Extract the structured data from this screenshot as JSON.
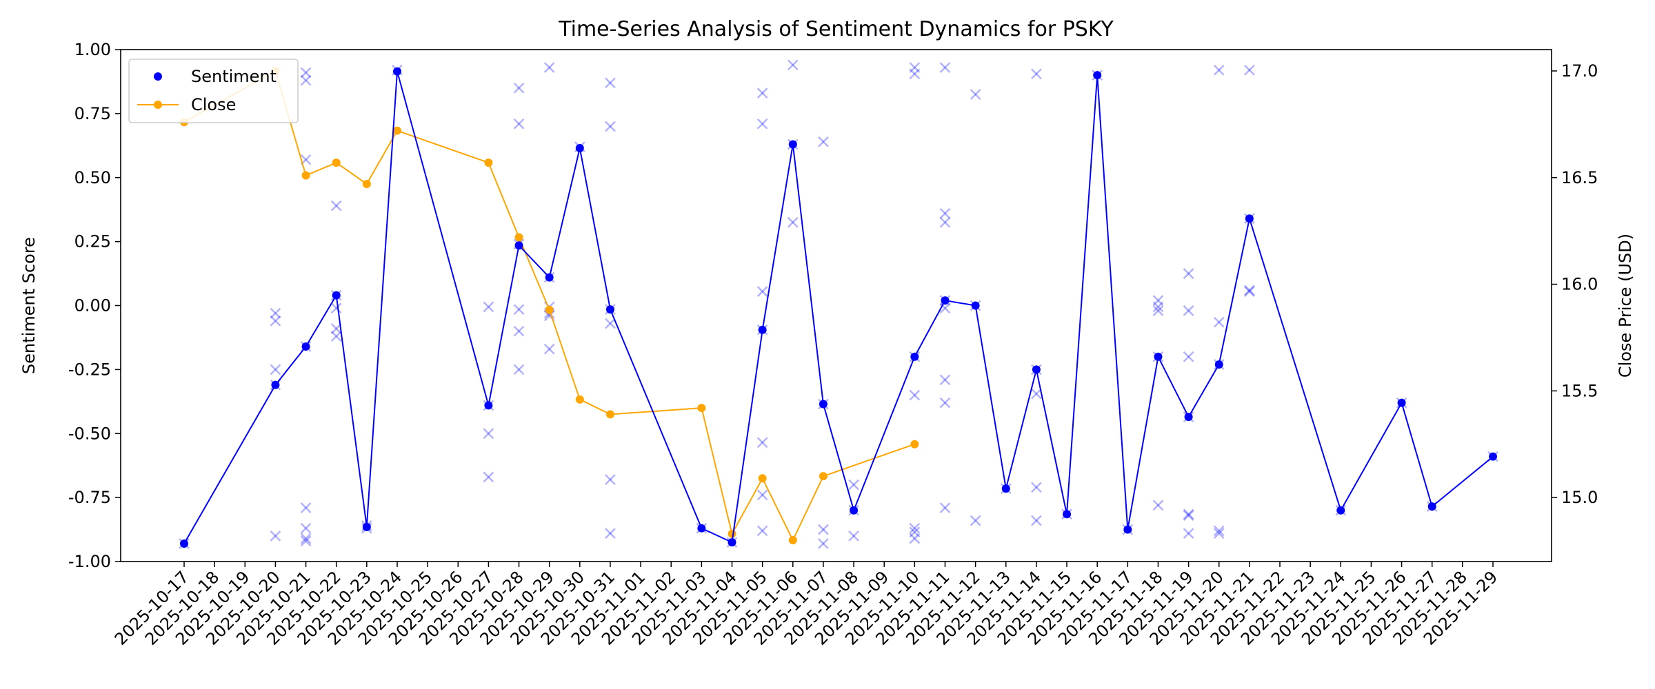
{
  "chart_data": {
    "type": "line",
    "title": "Time-Series Analysis of Sentiment Dynamics for PSKY",
    "ylabel": "Sentiment Score",
    "ylabel_right": "Close Price (USD)",
    "xlabel": "",
    "ylim": [
      -1.0,
      1.0
    ],
    "ylim_right": [
      14.7,
      17.1
    ],
    "yticks": [
      "-1.00",
      "-0.75",
      "-0.50",
      "-0.25",
      "0.00",
      "0.25",
      "0.50",
      "0.75",
      "1.00"
    ],
    "yticks_right": [
      "15.0",
      "15.5",
      "16.0",
      "16.5",
      "17.0"
    ],
    "x_categories": [
      "2025-10-17",
      "2025-10-18",
      "2025-10-19",
      "2025-10-20",
      "2025-10-21",
      "2025-10-22",
      "2025-10-23",
      "2025-10-24",
      "2025-10-25",
      "2025-10-26",
      "2025-10-27",
      "2025-10-28",
      "2025-10-29",
      "2025-10-30",
      "2025-10-31",
      "2025-11-01",
      "2025-11-02",
      "2025-11-03",
      "2025-11-04",
      "2025-11-05",
      "2025-11-06",
      "2025-11-07",
      "2025-11-08",
      "2025-11-09",
      "2025-11-10",
      "2025-11-11",
      "2025-11-12",
      "2025-11-13",
      "2025-11-14",
      "2025-11-15",
      "2025-11-16",
      "2025-11-17",
      "2025-11-18",
      "2025-11-19",
      "2025-11-20",
      "2025-11-21",
      "2025-11-22",
      "2025-11-23",
      "2025-11-24",
      "2025-11-25",
      "2025-11-26",
      "2025-11-27",
      "2025-11-28",
      "2025-11-29"
    ],
    "x_positions": [
      "2025-10-17",
      "2025-10-19",
      "2025-10-20",
      "2025-10-21",
      "2025-10-22",
      "2025-10-24",
      "2025-10-26",
      "2025-10-27",
      "2025-10-28",
      "2025-10-29",
      "2025-10-30",
      "2025-11-02",
      "2025-11-03",
      "2025-11-04",
      "2025-11-05",
      "2025-11-06",
      "2025-11-07",
      "2025-11-09",
      "2025-11-10",
      "2025-11-11",
      "2025-11-12",
      "2025-11-13",
      "2025-11-14",
      "2025-11-15",
      "2025-11-16",
      "2025-11-17",
      "2025-11-18",
      "2025-11-19",
      "2025-11-20",
      "2025-11-23",
      "2025-11-25",
      "2025-11-26",
      "2025-11-28"
    ],
    "series": [
      {
        "name": "Sentiment",
        "color": "#0000ff",
        "axis": "left",
        "points": [
          [
            "2025-10-17",
            -0.93
          ],
          [
            "2025-10-20",
            -0.31
          ],
          [
            "2025-10-21",
            -0.16
          ],
          [
            "2025-10-22",
            0.04
          ],
          [
            "2025-10-23",
            -0.865
          ],
          [
            "2025-10-24",
            0.915
          ],
          [
            "2025-10-27",
            -0.39
          ],
          [
            "2025-10-28",
            0.235
          ],
          [
            "2025-10-29",
            0.11
          ],
          [
            "2025-10-30",
            0.615
          ],
          [
            "2025-10-31",
            -0.015
          ],
          [
            "2025-11-03",
            -0.87
          ],
          [
            "2025-11-04",
            -0.925
          ],
          [
            "2025-11-05",
            -0.095
          ],
          [
            "2025-11-06",
            0.63
          ],
          [
            "2025-11-07",
            -0.385
          ],
          [
            "2025-11-08",
            -0.8
          ],
          [
            "2025-11-10",
            -0.2
          ],
          [
            "2025-11-11",
            0.02
          ],
          [
            "2025-11-12",
            0.0
          ],
          [
            "2025-11-13",
            -0.715
          ],
          [
            "2025-11-14",
            -0.25
          ],
          [
            "2025-11-15",
            -0.815
          ],
          [
            "2025-11-16",
            0.9
          ],
          [
            "2025-11-17",
            -0.875
          ],
          [
            "2025-11-18",
            -0.2
          ],
          [
            "2025-11-19",
            -0.435
          ],
          [
            "2025-11-20",
            -0.23
          ],
          [
            "2025-11-21",
            0.34
          ],
          [
            "2025-11-24",
            -0.8
          ],
          [
            "2025-11-26",
            -0.38
          ],
          [
            "2025-11-27",
            -0.785
          ],
          [
            "2025-11-29",
            -0.59
          ]
        ]
      },
      {
        "name": "Close",
        "color": "#ffa500",
        "axis": "right",
        "points": [
          [
            "2025-10-17",
            16.76
          ],
          [
            "2025-10-20",
            17.0
          ],
          [
            "2025-10-21",
            16.51
          ],
          [
            "2025-10-22",
            16.57
          ],
          [
            "2025-10-23",
            16.47
          ],
          [
            "2025-10-24",
            16.72
          ],
          [
            "2025-10-27",
            16.57
          ],
          [
            "2025-10-28",
            16.22
          ],
          [
            "2025-10-29",
            15.88
          ],
          [
            "2025-10-30",
            15.46
          ],
          [
            "2025-10-31",
            15.39
          ],
          [
            "2025-11-03",
            15.42
          ],
          [
            "2025-11-04",
            14.83
          ],
          [
            "2025-11-05",
            15.09
          ],
          [
            "2025-11-06",
            14.8
          ],
          [
            "2025-11-07",
            15.1
          ],
          [
            "2025-11-10",
            15.25
          ]
        ]
      }
    ],
    "scatter_individual": {
      "color": "#0000ff",
      "opacity": 0.3,
      "marker": "x",
      "points": [
        [
          "2025-10-17",
          -0.93
        ],
        [
          "2025-10-20",
          -0.03
        ],
        [
          "2025-10-20",
          -0.06
        ],
        [
          "2025-10-20",
          -0.25
        ],
        [
          "2025-10-20",
          -0.31
        ],
        [
          "2025-10-20",
          -0.9
        ],
        [
          "2025-10-21",
          0.91
        ],
        [
          "2025-10-21",
          0.88
        ],
        [
          "2025-10-21",
          0.57
        ],
        [
          "2025-10-21",
          -0.16
        ],
        [
          "2025-10-21",
          -0.79
        ],
        [
          "2025-10-21",
          -0.87
        ],
        [
          "2025-10-21",
          -0.91
        ],
        [
          "2025-10-21",
          -0.92
        ],
        [
          "2025-10-22",
          0.39
        ],
        [
          "2025-10-22",
          0.04
        ],
        [
          "2025-10-22",
          -0.01
        ],
        [
          "2025-10-22",
          -0.09
        ],
        [
          "2025-10-22",
          -0.12
        ],
        [
          "2025-10-23",
          -0.86
        ],
        [
          "2025-10-23",
          -0.87
        ],
        [
          "2025-10-24",
          0.92
        ],
        [
          "2025-10-27",
          -0.005
        ],
        [
          "2025-10-27",
          -0.39
        ],
        [
          "2025-10-27",
          -0.5
        ],
        [
          "2025-10-27",
          -0.67
        ],
        [
          "2025-10-28",
          0.85
        ],
        [
          "2025-10-28",
          0.71
        ],
        [
          "2025-10-28",
          0.24
        ],
        [
          "2025-10-28",
          -0.015
        ],
        [
          "2025-10-28",
          -0.1
        ],
        [
          "2025-10-28",
          -0.25
        ],
        [
          "2025-10-29",
          0.93
        ],
        [
          "2025-10-29",
          0.11
        ],
        [
          "2025-10-29",
          -0.005
        ],
        [
          "2025-10-29",
          -0.03
        ],
        [
          "2025-10-29",
          -0.04
        ],
        [
          "2025-10-29",
          -0.17
        ],
        [
          "2025-10-30",
          0.62
        ],
        [
          "2025-10-31",
          0.87
        ],
        [
          "2025-10-31",
          0.7
        ],
        [
          "2025-10-31",
          -0.015
        ],
        [
          "2025-10-31",
          -0.07
        ],
        [
          "2025-10-31",
          -0.68
        ],
        [
          "2025-10-31",
          -0.89
        ],
        [
          "2025-11-03",
          -0.87
        ],
        [
          "2025-11-04",
          -0.925
        ],
        [
          "2025-11-05",
          0.83
        ],
        [
          "2025-11-05",
          0.71
        ],
        [
          "2025-11-05",
          0.055
        ],
        [
          "2025-11-05",
          -0.095
        ],
        [
          "2025-11-05",
          -0.535
        ],
        [
          "2025-11-05",
          -0.74
        ],
        [
          "2025-11-05",
          -0.88
        ],
        [
          "2025-11-06",
          0.94
        ],
        [
          "2025-11-06",
          0.63
        ],
        [
          "2025-11-06",
          0.325
        ],
        [
          "2025-11-07",
          0.64
        ],
        [
          "2025-11-07",
          -0.385
        ],
        [
          "2025-11-07",
          -0.875
        ],
        [
          "2025-11-07",
          -0.93
        ],
        [
          "2025-11-08",
          -0.7
        ],
        [
          "2025-11-08",
          -0.8
        ],
        [
          "2025-11-08",
          -0.9
        ],
        [
          "2025-11-10",
          0.93
        ],
        [
          "2025-11-10",
          0.905
        ],
        [
          "2025-11-10",
          -0.2
        ],
        [
          "2025-11-10",
          -0.35
        ],
        [
          "2025-11-10",
          -0.87
        ],
        [
          "2025-11-10",
          -0.885
        ],
        [
          "2025-11-10",
          -0.91
        ],
        [
          "2025-11-11",
          0.93
        ],
        [
          "2025-11-11",
          0.36
        ],
        [
          "2025-11-11",
          0.325
        ],
        [
          "2025-11-11",
          0.02
        ],
        [
          "2025-11-11",
          -0.01
        ],
        [
          "2025-11-11",
          -0.29
        ],
        [
          "2025-11-11",
          -0.38
        ],
        [
          "2025-11-11",
          -0.79
        ],
        [
          "2025-11-12",
          0.825
        ],
        [
          "2025-11-12",
          0.0
        ],
        [
          "2025-11-12",
          -0.84
        ],
        [
          "2025-11-13",
          -0.715
        ],
        [
          "2025-11-14",
          0.905
        ],
        [
          "2025-11-14",
          -0.25
        ],
        [
          "2025-11-14",
          -0.345
        ],
        [
          "2025-11-14",
          -0.71
        ],
        [
          "2025-11-14",
          -0.84
        ],
        [
          "2025-11-15",
          -0.815
        ],
        [
          "2025-11-16",
          0.9
        ],
        [
          "2025-11-17",
          -0.875
        ],
        [
          "2025-11-18",
          0.02
        ],
        [
          "2025-11-18",
          -0.005
        ],
        [
          "2025-11-18",
          -0.02
        ],
        [
          "2025-11-18",
          -0.2
        ],
        [
          "2025-11-18",
          -0.78
        ],
        [
          "2025-11-19",
          0.125
        ],
        [
          "2025-11-19",
          -0.02
        ],
        [
          "2025-11-19",
          -0.2
        ],
        [
          "2025-11-19",
          -0.435
        ],
        [
          "2025-11-19",
          -0.815
        ],
        [
          "2025-11-19",
          -0.82
        ],
        [
          "2025-11-19",
          -0.89
        ],
        [
          "2025-11-20",
          0.92
        ],
        [
          "2025-11-20",
          -0.065
        ],
        [
          "2025-11-20",
          -0.23
        ],
        [
          "2025-11-20",
          -0.88
        ],
        [
          "2025-11-20",
          -0.89
        ],
        [
          "2025-11-21",
          0.92
        ],
        [
          "2025-11-21",
          0.34
        ],
        [
          "2025-11-21",
          0.06
        ],
        [
          "2025-11-21",
          0.055
        ],
        [
          "2025-11-24",
          -0.8
        ],
        [
          "2025-11-26",
          -0.38
        ],
        [
          "2025-11-27",
          -0.785
        ],
        [
          "2025-11-29",
          -0.59
        ]
      ]
    },
    "legend": {
      "placement": "top-left",
      "entries": [
        {
          "label": "Sentiment",
          "color": "#0000ff",
          "marker": "dot"
        },
        {
          "label": "Close",
          "color": "#ffa500",
          "marker": "line-dot"
        }
      ]
    },
    "grid": false
  }
}
